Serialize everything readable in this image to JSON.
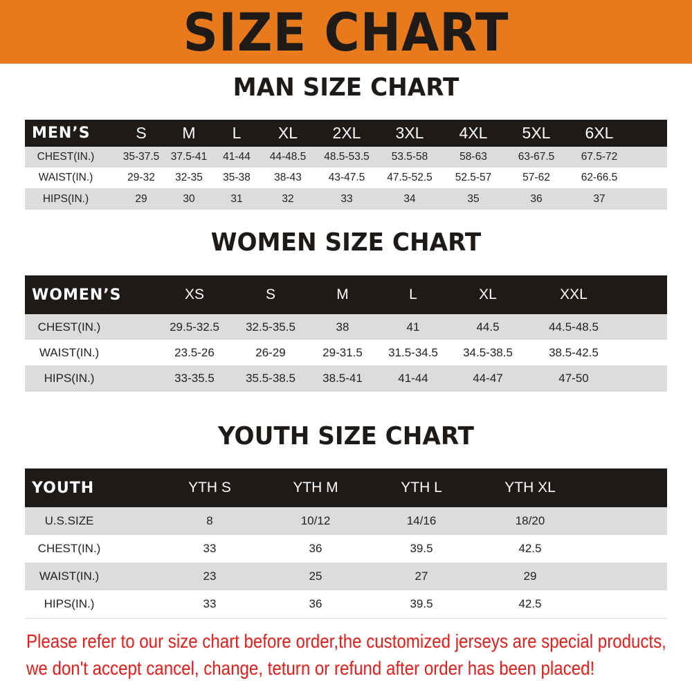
{
  "banner": {
    "title": "SIZE CHART",
    "color": "#e87a1e"
  },
  "men": {
    "title": "MAN SIZE CHART",
    "header": [
      "MEN’S",
      "S",
      "M",
      "L",
      "XL",
      "2XL",
      "3XL",
      "4XL",
      "5XL",
      "6XL"
    ],
    "rows": [
      [
        "CHEST(IN.)",
        "35-37.5",
        "37.5-41",
        "41-44",
        "44-48.5",
        "48.5-53.5",
        "53.5-58",
        "58-63",
        "63-67.5",
        "67.5-72"
      ],
      [
        "WAIST(IN.)",
        "29-32",
        "32-35",
        "35-38",
        "38-43",
        "43-47.5",
        "47.5-52.5",
        "52.5-57",
        "57-62",
        "62-66.5"
      ],
      [
        "HIPS(IN.)",
        "29",
        "30",
        "31",
        "32",
        "33",
        "34",
        "35",
        "36",
        "37"
      ]
    ]
  },
  "women": {
    "title": "WOMEN SIZE CHART",
    "header": [
      "WOMEN’S",
      "XS",
      "S",
      "M",
      "L",
      "XL",
      "XXL"
    ],
    "rows": [
      [
        "CHEST(IN.)",
        "29.5-32.5",
        "32.5-35.5",
        "38",
        "41",
        "44.5",
        "44.5-48.5"
      ],
      [
        "WAIST(IN.)",
        "23.5-26",
        "26-29",
        "29-31.5",
        "31.5-34.5",
        "34.5-38.5",
        "38.5-42.5"
      ],
      [
        "HIPS(IN.)",
        "33-35.5",
        "35.5-38.5",
        "38.5-41",
        "41-44",
        "44-47",
        "47-50"
      ]
    ]
  },
  "youth": {
    "title": "YOUTH SIZE CHART",
    "header": [
      "YOUTH",
      "YTH S",
      "YTH M",
      "YTH L",
      "YTH XL"
    ],
    "rows": [
      [
        "U.S.SIZE",
        "8",
        "10/12",
        "14/16",
        "18/20"
      ],
      [
        "CHEST(IN.)",
        "33",
        "36",
        "39.5",
        "42.5"
      ],
      [
        "WAIST(IN.)",
        "23",
        "25",
        "27",
        "29"
      ],
      [
        "HIPS(IN.)",
        "33",
        "36",
        "39.5",
        "42.5"
      ]
    ]
  },
  "notice": {
    "line1": "Please refer to our size chart before order,the customized jerseys are special products,",
    "line2": "we don't accept cancel, change, teturn or refund after order has been placed!",
    "color": "#e0201c"
  }
}
